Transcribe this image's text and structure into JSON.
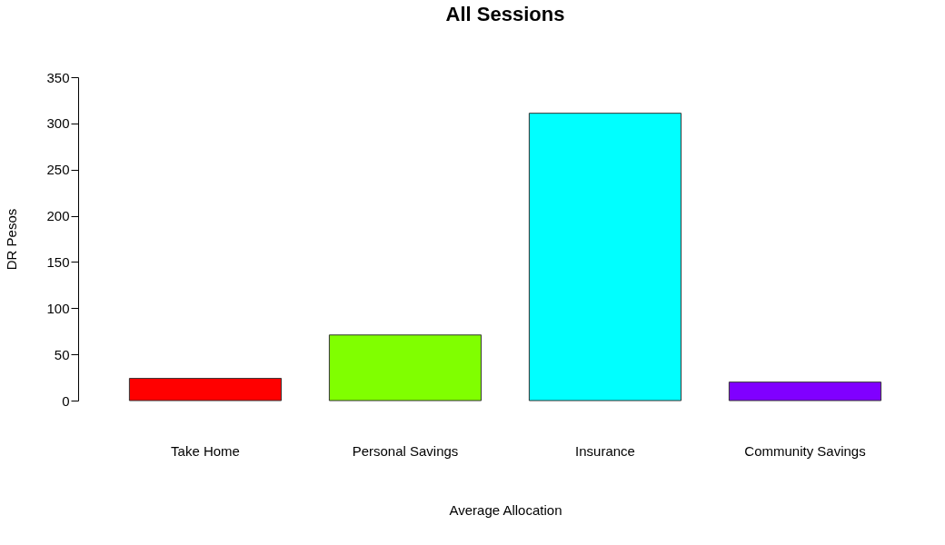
{
  "chart_data": {
    "type": "bar",
    "title": "All Sessions",
    "xlabel": "Average Allocation",
    "ylabel": "DR Pesos",
    "categories": [
      "Take Home",
      "Personal Savings",
      "Insurance",
      "Community Savings"
    ],
    "values": [
      24,
      71,
      311,
      20
    ],
    "colors": [
      "#ff0000",
      "#80ff00",
      "#00ffff",
      "#8000ff"
    ],
    "ylim": [
      0,
      350
    ],
    "yticks": [
      0,
      50,
      100,
      150,
      200,
      250,
      300,
      350
    ],
    "grid": false,
    "legend": false
  }
}
